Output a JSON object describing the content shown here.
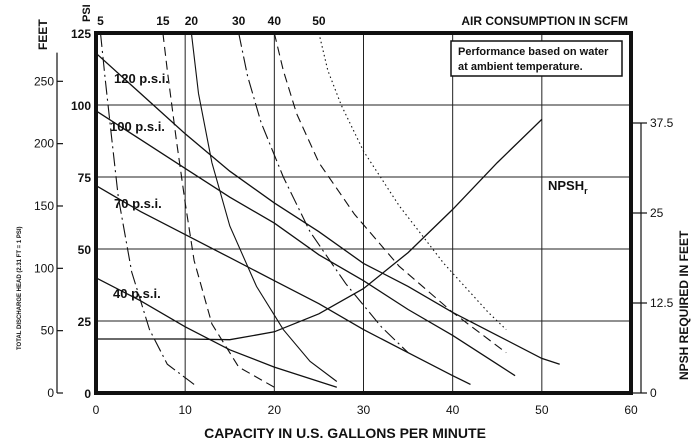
{
  "chart_data": {
    "type": "line",
    "annotation_box": [
      "Performance based on water",
      "at ambient temperature."
    ],
    "top_axis": {
      "unit_label": "PSI",
      "title": "AIR CONSUMPTION IN SCFM",
      "ticks": [
        "5",
        "15",
        "20",
        "30",
        "40",
        "50"
      ]
    },
    "x_axis": {
      "label": "CAPACITY IN U.S. GALLONS PER MINUTE",
      "min": 0,
      "max": 60,
      "ticks": [
        "0",
        "10",
        "20",
        "30",
        "40",
        "50",
        "60"
      ]
    },
    "y_axis_psi": {
      "min": 0,
      "max": 125,
      "ticks": [
        "0",
        "25",
        "50",
        "75",
        "100",
        "125"
      ]
    },
    "y_axis_feet": {
      "unit_label": "FEET",
      "label": "TOTAL DISCHARGE HEAD (2.31 FT = 1 PSI)",
      "ticks": [
        "0",
        "50",
        "100",
        "150",
        "200",
        "250"
      ]
    },
    "y_axis_right": {
      "label": "NPSH REQUIRED IN FEET",
      "min": 0,
      "max": 50,
      "ticks": [
        "0",
        "12.5",
        "25",
        "37.5"
      ]
    },
    "series": [
      {
        "name": "120 p.s.i.",
        "label_main": "120 p.s.i.",
        "style": "solid",
        "x": [
          0,
          5,
          10,
          15,
          20,
          25,
          30,
          35,
          40,
          45,
          50,
          52
        ],
        "y": [
          118,
          104,
          90,
          77,
          66,
          56,
          45,
          37,
          28,
          20,
          12,
          10
        ]
      },
      {
        "name": "100 p.s.i.",
        "label_main": "100 p.s.i.",
        "style": "solid",
        "x": [
          0,
          5,
          10,
          15,
          20,
          25,
          30,
          35,
          40,
          45,
          47
        ],
        "y": [
          98,
          88,
          78,
          68,
          59,
          48,
          39,
          29,
          20,
          10,
          6
        ]
      },
      {
        "name": "70 p.s.i.",
        "label_main": "70 p.s.i.",
        "style": "solid",
        "x": [
          0,
          5,
          10,
          15,
          20,
          25,
          30,
          35,
          40,
          42
        ],
        "y": [
          72,
          63,
          55,
          47,
          39,
          31,
          22,
          14,
          6,
          3
        ]
      },
      {
        "name": "40 p.s.i.",
        "label_main": "40 p.s.i.",
        "style": "solid",
        "x": [
          0,
          5,
          10,
          15,
          20,
          25,
          27
        ],
        "y": [
          40,
          32,
          23,
          15,
          9,
          4,
          2
        ]
      },
      {
        "name": "NPSHr",
        "label_main": "NPSH",
        "label_sub": "r",
        "axis": "right",
        "style": "solid",
        "x": [
          0,
          5,
          10,
          15,
          20,
          25,
          30,
          35,
          40,
          45,
          50
        ],
        "y": [
          7.5,
          7.5,
          7.5,
          7.4,
          8.5,
          11,
          14.5,
          19.5,
          25.5,
          32,
          38
        ]
      }
    ],
    "air_curves": [
      {
        "name": "5",
        "style": "dashdot",
        "x": [
          0.5,
          1,
          1.7,
          2.5,
          4,
          6,
          8,
          11
        ],
        "y": [
          125,
          110,
          90,
          68,
          42,
          22,
          10,
          3
        ]
      },
      {
        "name": "15",
        "style": "dashed",
        "x": [
          7.5,
          8,
          9,
          10,
          11,
          13,
          16,
          20
        ],
        "y": [
          125,
          112,
          88,
          66,
          46,
          24,
          9,
          2
        ]
      },
      {
        "name": "20",
        "style": "solid",
        "x": [
          10.7,
          11.5,
          13,
          15,
          18,
          21,
          24,
          27
        ],
        "y": [
          125,
          104,
          80,
          58,
          37,
          22,
          11,
          4
        ]
      },
      {
        "name": "30",
        "style": "dashdot",
        "x": [
          16,
          17,
          18.5,
          21,
          24,
          28,
          32,
          35
        ],
        "y": [
          125,
          110,
          94,
          75,
          56,
          38,
          23,
          14
        ]
      },
      {
        "name": "40",
        "style": "dashed",
        "x": [
          20,
          21,
          22.5,
          25,
          29,
          34,
          40,
          46
        ],
        "y": [
          125,
          112,
          97,
          80,
          62,
          44,
          28,
          14
        ]
      },
      {
        "name": "50",
        "style": "dotted",
        "x": [
          25,
          26,
          27.5,
          30,
          34,
          39,
          44,
          46
        ],
        "y": [
          125,
          112,
          100,
          84,
          65,
          45,
          28,
          22
        ]
      }
    ],
    "grid": true
  }
}
